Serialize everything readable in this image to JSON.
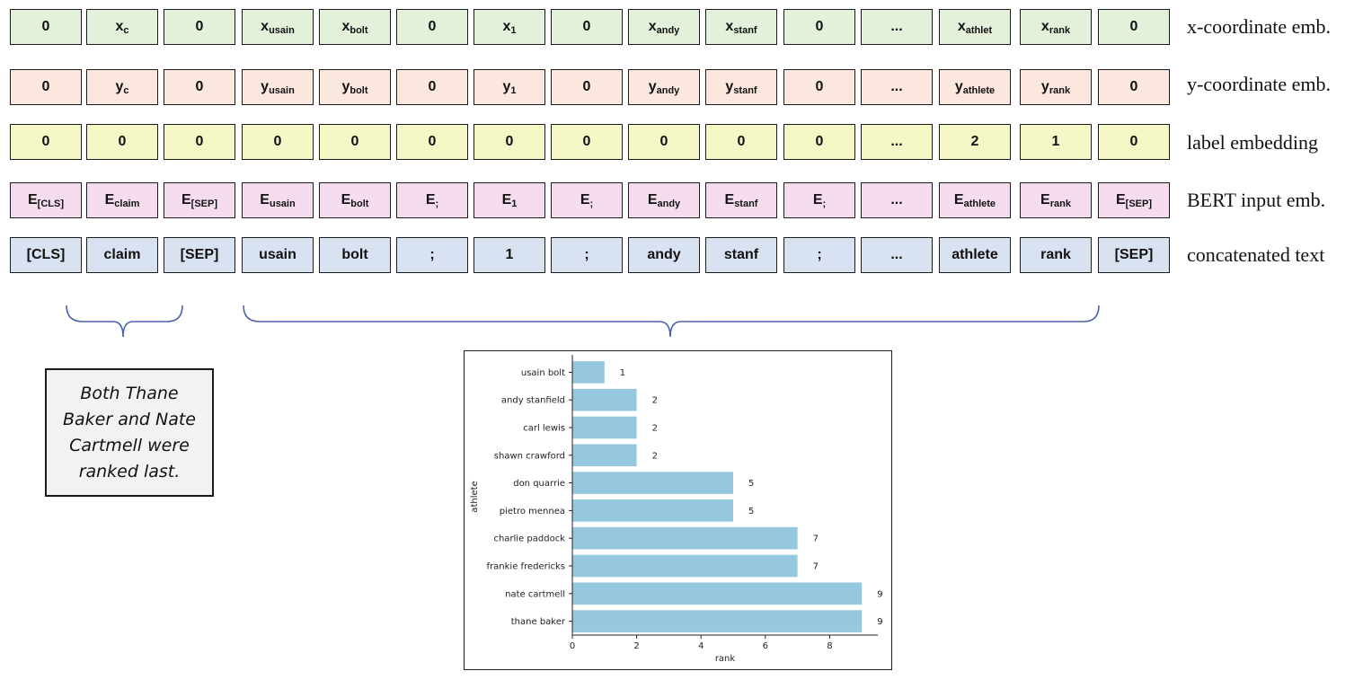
{
  "rows": [
    {
      "id": "x-coordinate-emb",
      "label": "x-coordinate emb.",
      "color": "#e3f0da",
      "cells": [
        {
          "main": "0",
          "sub": ""
        },
        {
          "main": "x",
          "sub": "c"
        },
        {
          "main": "0",
          "sub": ""
        },
        {
          "main": "x",
          "sub": "usain"
        },
        {
          "main": "x",
          "sub": "bolt"
        },
        {
          "main": "0",
          "sub": ""
        },
        {
          "main": "x",
          "sub": "1"
        },
        {
          "main": "0",
          "sub": ""
        },
        {
          "main": "x",
          "sub": "andy"
        },
        {
          "main": "x",
          "sub": "stanf"
        },
        {
          "main": "0",
          "sub": ""
        },
        {
          "main": "...",
          "sub": ""
        },
        {
          "main": "x",
          "sub": "athlet"
        },
        {
          "main": "x",
          "sub": "rank"
        },
        {
          "main": "0",
          "sub": ""
        }
      ]
    },
    {
      "id": "y-coordinate-emb",
      "label": "y-coordinate emb.",
      "color": "#fbe7dd",
      "cells": [
        {
          "main": "0",
          "sub": ""
        },
        {
          "main": "y",
          "sub": "c"
        },
        {
          "main": "0",
          "sub": ""
        },
        {
          "main": "y",
          "sub": "usain"
        },
        {
          "main": "y",
          "sub": "bolt"
        },
        {
          "main": "0",
          "sub": ""
        },
        {
          "main": "y",
          "sub": "1"
        },
        {
          "main": "0",
          "sub": ""
        },
        {
          "main": "y",
          "sub": "andy"
        },
        {
          "main": "y",
          "sub": "stanf"
        },
        {
          "main": "0",
          "sub": ""
        },
        {
          "main": "...",
          "sub": ""
        },
        {
          "main": "y",
          "sub": "athlete"
        },
        {
          "main": "y",
          "sub": "rank"
        },
        {
          "main": "0",
          "sub": ""
        }
      ]
    },
    {
      "id": "label-embedding",
      "label": "label embedding",
      "color": "#f6f7c6",
      "cells": [
        {
          "main": "0",
          "sub": ""
        },
        {
          "main": "0",
          "sub": ""
        },
        {
          "main": "0",
          "sub": ""
        },
        {
          "main": "0",
          "sub": ""
        },
        {
          "main": "0",
          "sub": ""
        },
        {
          "main": "0",
          "sub": ""
        },
        {
          "main": "0",
          "sub": ""
        },
        {
          "main": "0",
          "sub": ""
        },
        {
          "main": "0",
          "sub": ""
        },
        {
          "main": "0",
          "sub": ""
        },
        {
          "main": "0",
          "sub": ""
        },
        {
          "main": "...",
          "sub": ""
        },
        {
          "main": "2",
          "sub": ""
        },
        {
          "main": "1",
          "sub": ""
        },
        {
          "main": "0",
          "sub": ""
        }
      ]
    },
    {
      "id": "bert-input-emb",
      "label": "BERT input emb.",
      "color": "#f6dcef",
      "cells": [
        {
          "main": "E",
          "sub": "[CLS]"
        },
        {
          "main": "E",
          "sub": "claim"
        },
        {
          "main": "E",
          "sub": "[SEP]"
        },
        {
          "main": "E",
          "sub": "usain"
        },
        {
          "main": "E",
          "sub": "bolt"
        },
        {
          "main": "E",
          "sub": ";"
        },
        {
          "main": "E",
          "sub": "1"
        },
        {
          "main": "E",
          "sub": ";"
        },
        {
          "main": "E",
          "sub": "andy"
        },
        {
          "main": "E",
          "sub": "stanf"
        },
        {
          "main": "E",
          "sub": ";"
        },
        {
          "main": "...",
          "sub": ""
        },
        {
          "main": "E",
          "sub": "athlete"
        },
        {
          "main": "E",
          "sub": "rank"
        },
        {
          "main": "E",
          "sub": "[SEP]"
        }
      ]
    },
    {
      "id": "concatenated-text",
      "label": "concatenated text",
      "color": "#d9e2f1",
      "cells": [
        {
          "main": "[CLS]",
          "sub": ""
        },
        {
          "main": "claim",
          "sub": ""
        },
        {
          "main": "[SEP]",
          "sub": ""
        },
        {
          "main": "usain",
          "sub": ""
        },
        {
          "main": "bolt",
          "sub": ""
        },
        {
          "main": ";",
          "sub": ""
        },
        {
          "main": "1",
          "sub": ""
        },
        {
          "main": ";",
          "sub": ""
        },
        {
          "main": "andy",
          "sub": ""
        },
        {
          "main": "stanf",
          "sub": ""
        },
        {
          "main": ";",
          "sub": ""
        },
        {
          "main": "...",
          "sub": ""
        },
        {
          "main": "athlete",
          "sub": ""
        },
        {
          "main": "rank",
          "sub": ""
        },
        {
          "main": "[SEP]",
          "sub": ""
        }
      ]
    }
  ],
  "brace_color": "#4a63a8",
  "claim_text": "Both Thane Baker and Nate Cartmell were ranked last.",
  "chart_data": {
    "type": "bar",
    "orientation": "horizontal",
    "categories": [
      "usain bolt",
      "andy stanfield",
      "carl lewis",
      "shawn crawford",
      "don quarrie",
      "pietro mennea",
      "charlie paddock",
      "frankie fredericks",
      "nate cartmell",
      "thane baker"
    ],
    "values": [
      1,
      2,
      2,
      2,
      5,
      5,
      7,
      7,
      9,
      9
    ],
    "value_labels": [
      "1",
      "2",
      "2",
      "2",
      "5",
      "5",
      "7",
      "7",
      "9",
      "9"
    ],
    "xlabel": "rank",
    "ylabel": "athlete",
    "xlim": [
      0,
      9.5
    ],
    "xticks": [
      0,
      2,
      4,
      6,
      8
    ],
    "bar_color": "#95c8df",
    "grid": false,
    "legend": "none"
  }
}
